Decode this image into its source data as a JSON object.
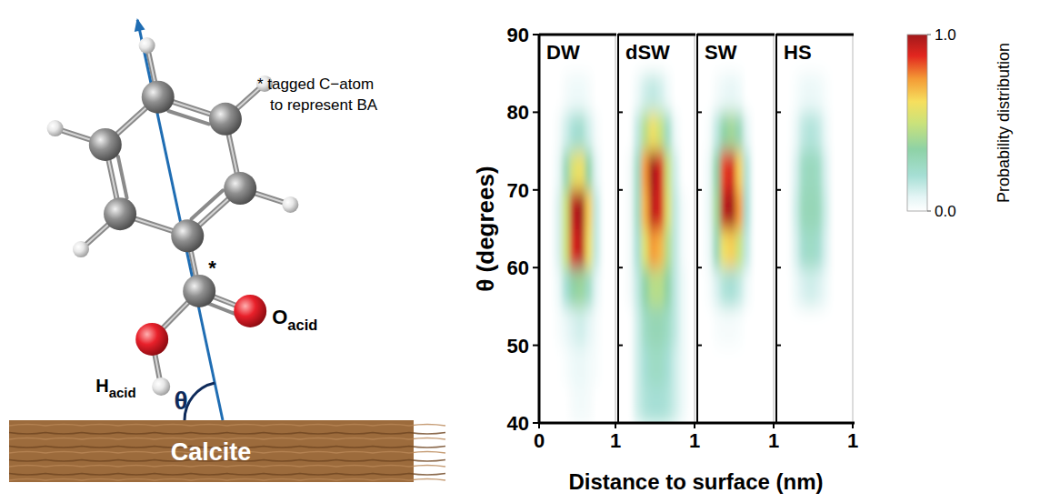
{
  "chart_data": [
    {
      "type": "heatmap",
      "title": "DW",
      "xlim": [
        0,
        1
      ],
      "xticks": [
        0,
        1
      ],
      "ylim": [
        40,
        90
      ],
      "yticks": [
        40,
        50,
        60,
        70,
        80,
        90
      ],
      "x_bins": [
        0,
        0.1,
        0.2,
        0.3,
        0.4,
        0.5,
        0.6,
        0.7,
        0.8,
        0.9,
        1.0
      ],
      "y_bins": [
        40,
        45,
        50,
        55,
        60,
        65,
        70,
        75,
        80,
        85,
        90
      ],
      "cells": [
        [
          0,
          0,
          0,
          0,
          0.03,
          0.04,
          0.03,
          0,
          0,
          0
        ],
        [
          0,
          0,
          0,
          0.02,
          0.05,
          0.06,
          0.04,
          0.02,
          0,
          0
        ],
        [
          0,
          0,
          0.02,
          0.06,
          0.1,
          0.12,
          0.08,
          0.03,
          0,
          0
        ],
        [
          0,
          0,
          0.05,
          0.2,
          0.35,
          0.38,
          0.25,
          0.08,
          0,
          0
        ],
        [
          0,
          0,
          0.1,
          0.5,
          0.9,
          0.95,
          0.6,
          0.15,
          0,
          0
        ],
        [
          0,
          0,
          0.1,
          0.5,
          0.95,
          1.0,
          0.65,
          0.15,
          0,
          0
        ],
        [
          0,
          0,
          0.06,
          0.3,
          0.55,
          0.6,
          0.35,
          0.08,
          0,
          0
        ],
        [
          0,
          0,
          0.03,
          0.12,
          0.2,
          0.22,
          0.12,
          0.03,
          0,
          0
        ],
        [
          0,
          0,
          0,
          0.03,
          0.05,
          0.05,
          0.03,
          0,
          0,
          0
        ],
        [
          0,
          0,
          0,
          0,
          0,
          0,
          0,
          0,
          0,
          0
        ]
      ]
    },
    {
      "type": "heatmap",
      "title": "dSW",
      "xlim": [
        0,
        1
      ],
      "xticks": [
        1
      ],
      "ylim": [
        40,
        90
      ],
      "yticks": [
        40,
        50,
        60,
        70,
        80,
        90
      ],
      "tick_labels": "x",
      "x_bins": [
        0,
        0.1,
        0.2,
        0.3,
        0.4,
        0.5,
        0.6,
        0.7,
        0.8,
        0.9,
        1.0
      ],
      "y_bins": [
        40,
        45,
        50,
        55,
        60,
        65,
        70,
        75,
        80,
        85,
        90
      ],
      "cells": [
        [
          0,
          0,
          0.12,
          0.18,
          0.2,
          0.2,
          0.18,
          0.12,
          0.05,
          0
        ],
        [
          0,
          0,
          0.12,
          0.2,
          0.25,
          0.25,
          0.2,
          0.12,
          0.05,
          0
        ],
        [
          0,
          0,
          0.12,
          0.25,
          0.3,
          0.3,
          0.25,
          0.15,
          0.05,
          0
        ],
        [
          0,
          0.03,
          0.15,
          0.35,
          0.45,
          0.45,
          0.35,
          0.15,
          0.05,
          0
        ],
        [
          0,
          0.03,
          0.2,
          0.55,
          0.75,
          0.7,
          0.45,
          0.15,
          0.03,
          0
        ],
        [
          0,
          0.03,
          0.25,
          0.7,
          0.95,
          0.9,
          0.55,
          0.15,
          0.03,
          0
        ],
        [
          0,
          0.03,
          0.25,
          0.75,
          1.0,
          0.9,
          0.5,
          0.12,
          0,
          0
        ],
        [
          0,
          0,
          0.15,
          0.45,
          0.6,
          0.5,
          0.25,
          0.05,
          0,
          0
        ],
        [
          0,
          0,
          0.05,
          0.12,
          0.15,
          0.12,
          0.05,
          0,
          0,
          0
        ],
        [
          0,
          0,
          0,
          0,
          0,
          0,
          0,
          0,
          0,
          0
        ]
      ]
    },
    {
      "type": "heatmap",
      "title": "SW",
      "xlim": [
        0,
        1
      ],
      "xticks": [
        1
      ],
      "ylim": [
        40,
        90
      ],
      "yticks": [
        40,
        50,
        60,
        70,
        80,
        90
      ],
      "tick_labels": "x",
      "x_bins": [
        0,
        0.1,
        0.2,
        0.3,
        0.4,
        0.5,
        0.6,
        0.7,
        0.8,
        0.9,
        1.0
      ],
      "y_bins": [
        40,
        45,
        50,
        55,
        60,
        65,
        70,
        75,
        80,
        85,
        90
      ],
      "cells": [
        [
          0,
          0,
          0,
          0,
          0,
          0,
          0,
          0,
          0,
          0
        ],
        [
          0,
          0,
          0,
          0,
          0,
          0,
          0,
          0,
          0,
          0
        ],
        [
          0,
          0,
          0.02,
          0.03,
          0.03,
          0.02,
          0,
          0,
          0,
          0
        ],
        [
          0,
          0.02,
          0.1,
          0.18,
          0.2,
          0.15,
          0.05,
          0,
          0,
          0
        ],
        [
          0,
          0.05,
          0.3,
          0.6,
          0.65,
          0.5,
          0.15,
          0,
          0,
          0
        ],
        [
          0,
          0.06,
          0.4,
          0.95,
          1.0,
          0.75,
          0.2,
          0,
          0,
          0
        ],
        [
          0,
          0.05,
          0.35,
          0.85,
          0.9,
          0.65,
          0.18,
          0,
          0,
          0
        ],
        [
          0,
          0.02,
          0.15,
          0.35,
          0.4,
          0.3,
          0.08,
          0,
          0,
          0
        ],
        [
          0,
          0,
          0.03,
          0.06,
          0.07,
          0.05,
          0,
          0,
          0,
          0
        ],
        [
          0,
          0,
          0,
          0,
          0,
          0,
          0,
          0,
          0,
          0
        ]
      ]
    },
    {
      "type": "heatmap",
      "title": "HS",
      "xlim": [
        0,
        1
      ],
      "xticks": [
        1
      ],
      "ylim": [
        40,
        90
      ],
      "yticks": [
        40,
        50,
        60,
        70,
        80,
        90
      ],
      "tick_labels": "x",
      "x_bins": [
        0,
        0.1,
        0.2,
        0.3,
        0.4,
        0.5,
        0.6,
        0.7,
        0.8,
        0.9,
        1.0
      ],
      "y_bins": [
        40,
        45,
        50,
        55,
        60,
        65,
        70,
        75,
        80,
        85,
        90
      ],
      "cells": [
        [
          0,
          0,
          0,
          0,
          0,
          0,
          0,
          0,
          0,
          0
        ],
        [
          0,
          0,
          0,
          0,
          0,
          0,
          0,
          0,
          0,
          0
        ],
        [
          0,
          0,
          0,
          0,
          0,
          0,
          0,
          0,
          0,
          0
        ],
        [
          0,
          0,
          0.05,
          0.1,
          0.12,
          0.1,
          0.05,
          0,
          0,
          0
        ],
        [
          0,
          0,
          0.1,
          0.22,
          0.25,
          0.22,
          0.1,
          0,
          0,
          0
        ],
        [
          0,
          0,
          0.12,
          0.28,
          0.3,
          0.28,
          0.12,
          0,
          0,
          0
        ],
        [
          0,
          0,
          0.1,
          0.25,
          0.28,
          0.25,
          0.1,
          0,
          0,
          0
        ],
        [
          0,
          0,
          0.06,
          0.15,
          0.18,
          0.15,
          0.06,
          0,
          0,
          0
        ],
        [
          0,
          0,
          0.02,
          0.05,
          0.06,
          0.05,
          0.02,
          0,
          0,
          0
        ],
        [
          0,
          0,
          0,
          0,
          0,
          0,
          0,
          0,
          0,
          0
        ]
      ]
    }
  ],
  "figure": {
    "x_label": "Distance to surface (nm)",
    "y_label": "θ (degrees)",
    "colorbar": {
      "label": "Probability distribution",
      "range": [
        0,
        1
      ],
      "ticks": [
        {
          "value": 0,
          "label": "0.0"
        },
        {
          "value": 1,
          "label": "1.0"
        }
      ]
    }
  },
  "diagram": {
    "note": [
      "* tagged C−atom",
      "to represent BA"
    ],
    "tag": "*",
    "atom_labels": [
      {
        "main": "O",
        "sub": "acid"
      },
      {
        "main": "H",
        "sub": "acid"
      }
    ],
    "angle": "θ",
    "surface": "Calcite"
  }
}
